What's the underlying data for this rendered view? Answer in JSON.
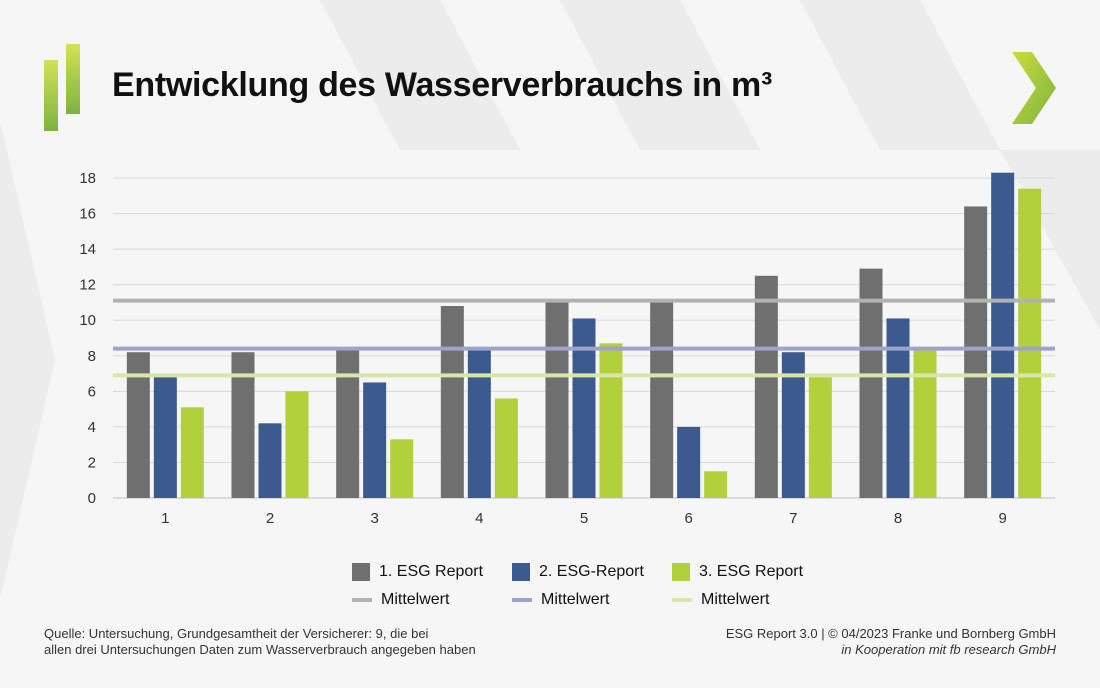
{
  "title": "Entwicklung des Wasserverbrauchs in m³",
  "colors": {
    "accent_green": "#a8c83a",
    "series1": "#6f6f6f",
    "series2": "#3d5a8e",
    "series3": "#b2cf3c",
    "mean1": "#b2b2b2",
    "mean2": "#9da4cc",
    "mean3": "#d8e6a8"
  },
  "icons": {
    "logo": "green-bars-logo",
    "next": "chevron-right-icon"
  },
  "chart_data": {
    "type": "bar",
    "categories": [
      "1",
      "2",
      "3",
      "4",
      "5",
      "6",
      "7",
      "8",
      "9"
    ],
    "series": [
      {
        "name": "1. ESG Report",
        "values": [
          8.2,
          8.2,
          8.3,
          10.8,
          11.0,
          11.0,
          12.5,
          12.9,
          16.4
        ]
      },
      {
        "name": "2. ESG-Report",
        "values": [
          6.8,
          4.2,
          6.5,
          8.3,
          10.1,
          4.0,
          8.2,
          10.1,
          18.3
        ]
      },
      {
        "name": "3. ESG Report",
        "values": [
          5.1,
          6.0,
          3.3,
          5.6,
          8.7,
          1.5,
          6.9,
          8.3,
          17.4
        ]
      }
    ],
    "reference_lines": [
      {
        "name": "Mittelwert",
        "value": 11.1
      },
      {
        "name": "Mittelwert",
        "value": 8.4
      },
      {
        "name": "Mittelwert",
        "value": 6.9
      }
    ],
    "ylim": [
      0,
      18
    ],
    "yticks": [
      "0",
      "2",
      "4",
      "6",
      "8",
      "10",
      "12",
      "14",
      "16",
      "18"
    ],
    "grid": true,
    "legend_position": "bottom"
  },
  "legend": {
    "items": [
      "1. ESG Report",
      "2. ESG-Report",
      "3. ESG Report"
    ],
    "mean_items": [
      "Mittelwert",
      "Mittelwert",
      "Mittelwert"
    ]
  },
  "source": {
    "line1": "Quelle: Untersuchung, Grundgesamtheit der Versicherer: 9, die bei",
    "line2": "allen drei Untersuchungen Daten zum Wasserverbrauch angegeben haben"
  },
  "footer": {
    "line1": "ESG Report 3.0 | © 04/2023 Franke und Bornberg GmbH",
    "line2": "in Kooperation mit fb research GmbH"
  }
}
